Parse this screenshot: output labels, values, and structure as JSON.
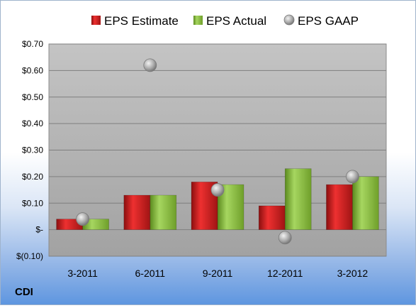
{
  "chart_data": {
    "type": "bar",
    "categories": [
      "3-2011",
      "6-2011",
      "9-2011",
      "12-2011",
      "3-2012"
    ],
    "series": [
      {
        "name": "EPS Estimate",
        "kind": "bar",
        "color": "#d42020",
        "values": [
          0.04,
          0.13,
          0.18,
          0.09,
          0.17
        ]
      },
      {
        "name": "EPS Actual",
        "kind": "bar",
        "color": "#8cc63f",
        "values": [
          0.04,
          0.13,
          0.17,
          0.23,
          0.2
        ]
      },
      {
        "name": "EPS GAAP",
        "kind": "scatter",
        "color": "#a6a6a6",
        "values": [
          0.04,
          0.62,
          0.15,
          -0.03,
          0.2
        ]
      }
    ],
    "ylim": [
      -0.1,
      0.7
    ],
    "yticks": [
      -0.1,
      0.0,
      0.1,
      0.2,
      0.3,
      0.4,
      0.5,
      0.6,
      0.7
    ],
    "ytick_labels": [
      "$(0.10)",
      "$-",
      "$0.10",
      "$0.20",
      "$0.30",
      "$0.40",
      "$0.50",
      "$0.60",
      "$0.70"
    ],
    "grid": true,
    "legend_position": "top",
    "ticker": "CDI"
  }
}
